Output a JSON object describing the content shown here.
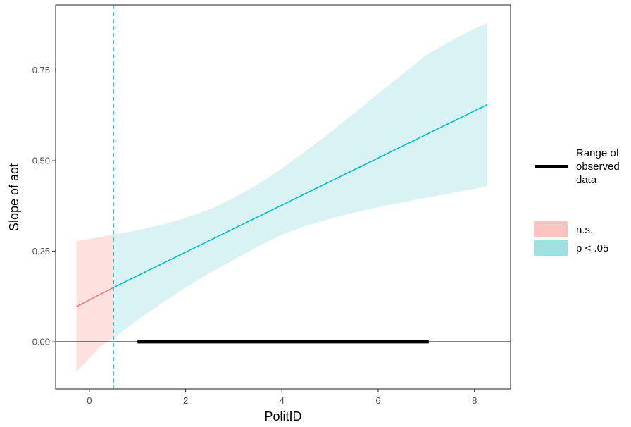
{
  "chart_data": {
    "type": "line",
    "xlabel": "PolitID",
    "ylabel": "Slope of aot",
    "xlim": [
      -0.7,
      8.75
    ],
    "ylim": [
      -0.13,
      0.93
    ],
    "x_ticks": [
      0,
      2,
      4,
      6,
      8
    ],
    "x_tick_labels": [
      "0",
      "2",
      "4",
      "6",
      "8"
    ],
    "y_ticks": [
      0.0,
      0.25,
      0.5,
      0.75
    ],
    "y_tick_labels": [
      "0.00",
      "0.25",
      "0.50",
      "0.75"
    ],
    "grid": false,
    "johnson_neyman_point": 0.5,
    "reference_line_y": 0,
    "observed_range": {
      "label": "Range of observed data",
      "label_lines": [
        "Range of",
        "observed",
        "data"
      ],
      "x": [
        1.0,
        7.05
      ]
    },
    "series": [
      {
        "name": "n.s.",
        "color": "#F8766D",
        "fill": "#FBC4C0",
        "line": {
          "x": [
            -0.27,
            0.5
          ],
          "y": [
            0.097,
            0.15
          ]
        },
        "band": {
          "x": [
            -0.27,
            0.0,
            0.25,
            0.5
          ],
          "upper": [
            0.278,
            0.284,
            0.29,
            0.296
          ],
          "lower": [
            -0.083,
            -0.045,
            -0.01,
            0.01
          ]
        }
      },
      {
        "name": "p < .05",
        "color": "#00BFC4",
        "fill": "#A0E0E3",
        "line": {
          "x": [
            0.5,
            8.27
          ],
          "y": [
            0.15,
            0.655
          ]
        },
        "band": {
          "x": [
            0.5,
            1.0,
            1.5,
            2.0,
            2.5,
            3.0,
            3.5,
            4.0,
            4.5,
            5.0,
            5.5,
            6.0,
            6.5,
            7.0,
            7.5,
            8.0,
            8.27
          ],
          "upper": [
            0.296,
            0.308,
            0.323,
            0.342,
            0.366,
            0.397,
            0.435,
            0.479,
            0.527,
            0.578,
            0.631,
            0.685,
            0.738,
            0.792,
            0.83,
            0.865,
            0.88
          ],
          "lower": [
            0.01,
            0.06,
            0.106,
            0.15,
            0.19,
            0.226,
            0.263,
            0.296,
            0.32,
            0.34,
            0.357,
            0.372,
            0.385,
            0.398,
            0.41,
            0.422,
            0.43
          ]
        }
      }
    ],
    "legend": {
      "position": "right",
      "entries": [
        {
          "key": "range",
          "label_lines": [
            "Range of",
            "observed",
            "data"
          ]
        },
        {
          "key": "ns",
          "label": "n.s.",
          "color": "#FBC4C0"
        },
        {
          "key": "sig",
          "label": "p < .05",
          "color": "#A0E0E3"
        }
      ]
    }
  }
}
